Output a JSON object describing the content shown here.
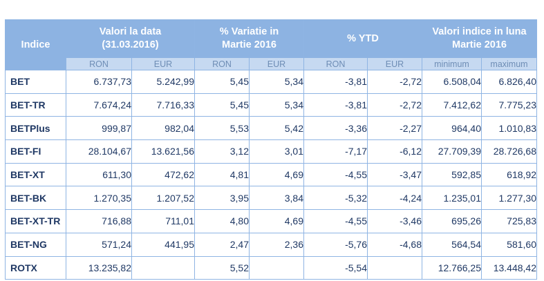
{
  "table": {
    "header": {
      "indice": "Indice",
      "valori_la_data": [
        "Valori la data",
        "(31.03.2016)"
      ],
      "variatie": [
        "% Variatie in",
        "Martie 2016"
      ],
      "ytd": "% YTD",
      "valori_luna": [
        "Valori indice in luna",
        "Martie 2016"
      ]
    },
    "subheader": [
      "RON",
      "EUR",
      "RON",
      "EUR",
      "RON",
      "EUR",
      "minimum",
      "maximum"
    ],
    "rows": [
      {
        "name": "BET",
        "cells": [
          "6.737,73",
          "5.242,99",
          "5,45",
          "5,34",
          "-3,81",
          "-2,72",
          "6.508,04",
          "6.826,40"
        ]
      },
      {
        "name": "BET-TR",
        "cells": [
          "7.674,24",
          "7.716,33",
          "5,45",
          "5,34",
          "-3,81",
          "-2,72",
          "7.412,62",
          "7.775,23"
        ]
      },
      {
        "name": "BETPlus",
        "cells": [
          "999,87",
          "982,04",
          "5,53",
          "5,42",
          "-3,36",
          "-2,27",
          "964,40",
          "1.010,83"
        ]
      },
      {
        "name": "BET-FI",
        "cells": [
          "28.104,67",
          "13.621,56",
          "3,12",
          "3,01",
          "-7,17",
          "-6,12",
          "27.709,39",
          "28.726,68"
        ]
      },
      {
        "name": "BET-XT",
        "cells": [
          "611,30",
          "472,62",
          "4,81",
          "4,69",
          "-4,55",
          "-3,47",
          "592,85",
          "618,92"
        ]
      },
      {
        "name": "BET-BK",
        "cells": [
          "1.270,35",
          "1.207,52",
          "3,95",
          "3,84",
          "-5,32",
          "-4,24",
          "1.235,01",
          "1.277,30"
        ]
      },
      {
        "name": "BET-XT-TR",
        "cells": [
          "716,88",
          "711,01",
          "4,80",
          "4,69",
          "-4,55",
          "-3,46",
          "695,26",
          "725,83"
        ]
      },
      {
        "name": "BET-NG",
        "cells": [
          "571,24",
          "441,95",
          "2,47",
          "2,36",
          "-5,76",
          "-4,68",
          "564,54",
          "581,60"
        ]
      },
      {
        "name": "ROTX",
        "cells": [
          "13.235,82",
          "",
          "5,52",
          "",
          "-5,54",
          "",
          "12.766,25",
          "13.448,42"
        ]
      }
    ]
  }
}
